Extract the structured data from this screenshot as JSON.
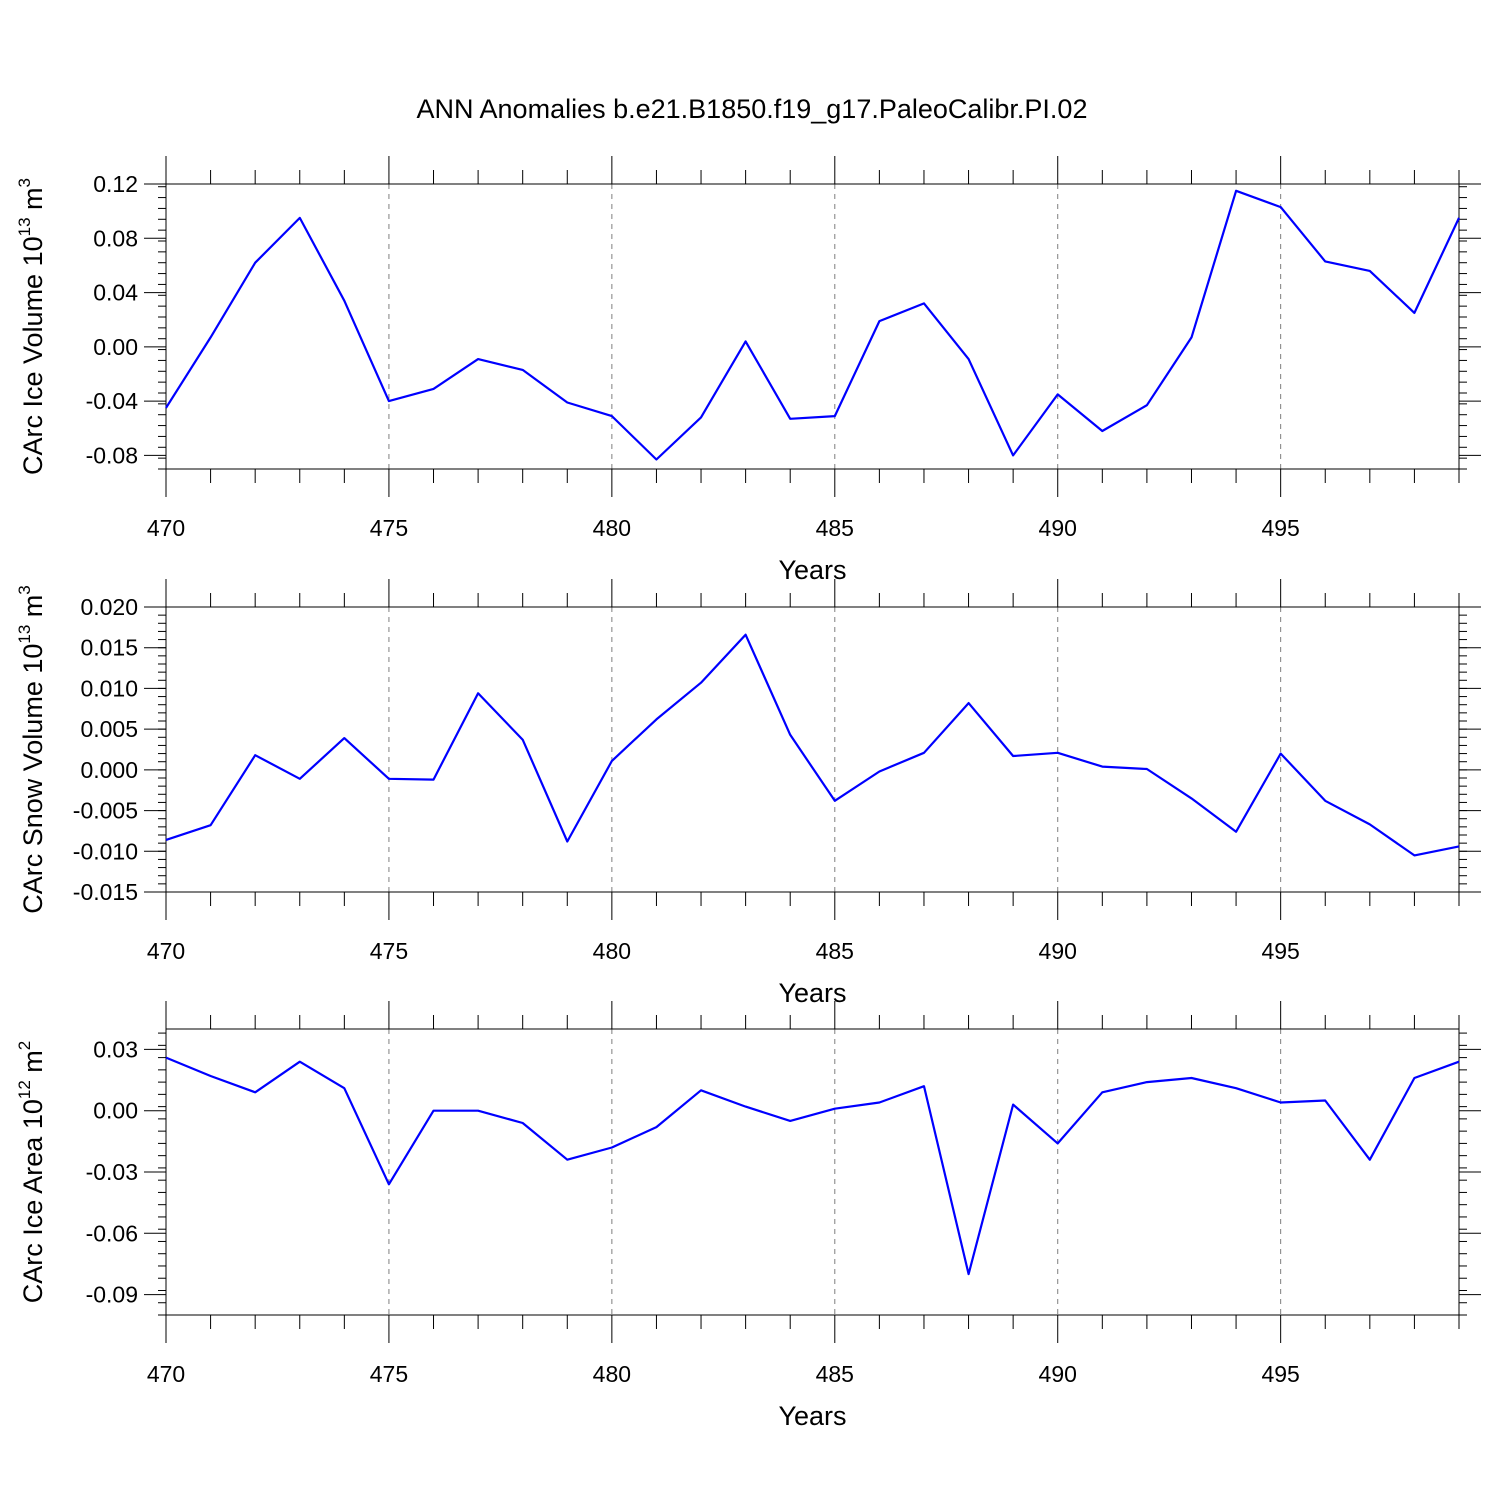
{
  "title": "ANN Anomalies b.e21.B1850.f19_g17.PaleoCalibr.PI.02",
  "colors": {
    "line": "#0000ff",
    "grid": "#7f7f7f"
  },
  "chart_data": [
    {
      "type": "line",
      "xlabel": "Years",
      "ylabel": {
        "base": "CArc Ice Volume 10",
        "exp": "13",
        "unit": " m",
        "unit_exp": "3"
      },
      "xlim": [
        470,
        499
      ],
      "ylim": [
        -0.09,
        0.12
      ],
      "x_ticks": [
        470,
        475,
        480,
        485,
        490,
        495
      ],
      "x_tick_labels": [
        "470",
        "475",
        "480",
        "485",
        "490",
        "495"
      ],
      "y_ticks": [
        -0.08,
        -0.04,
        0.0,
        0.04,
        0.08,
        0.12
      ],
      "y_tick_labels": [
        "-0.08",
        "-0.04",
        "0.00",
        "0.04",
        "0.08",
        "0.12"
      ],
      "grid": "vertical dashed at major x ticks",
      "x": [
        470,
        471,
        472,
        473,
        474,
        475,
        476,
        477,
        478,
        479,
        480,
        481,
        482,
        483,
        484,
        485,
        486,
        487,
        488,
        489,
        490,
        491,
        492,
        493,
        494,
        495,
        496,
        497,
        498,
        499
      ],
      "y": [
        -0.045,
        0.007,
        0.062,
        0.095,
        0.034,
        -0.04,
        -0.031,
        -0.009,
        -0.017,
        -0.041,
        -0.051,
        -0.083,
        -0.052,
        0.004,
        -0.053,
        -0.051,
        0.019,
        0.032,
        -0.009,
        -0.08,
        -0.035,
        -0.062,
        -0.043,
        0.007,
        0.115,
        0.103,
        0.063,
        0.056,
        0.025,
        0.095
      ]
    },
    {
      "type": "line",
      "xlabel": "Years",
      "ylabel": {
        "base": "CArc Snow Volume 10",
        "exp": "13",
        "unit": " m",
        "unit_exp": "3"
      },
      "xlim": [
        470,
        499
      ],
      "ylim": [
        -0.015,
        0.02
      ],
      "x_ticks": [
        470,
        475,
        480,
        485,
        490,
        495
      ],
      "x_tick_labels": [
        "470",
        "475",
        "480",
        "485",
        "490",
        "495"
      ],
      "y_ticks": [
        -0.015,
        -0.01,
        -0.005,
        0.0,
        0.005,
        0.01,
        0.015,
        0.02
      ],
      "y_tick_labels": [
        "-0.015",
        "-0.010",
        "-0.005",
        "0.000",
        "0.005",
        "0.010",
        "0.015",
        "0.020"
      ],
      "grid": "vertical dashed at major x ticks",
      "x": [
        470,
        471,
        472,
        473,
        474,
        475,
        476,
        477,
        478,
        479,
        480,
        481,
        482,
        483,
        484,
        485,
        486,
        487,
        488,
        489,
        490,
        491,
        492,
        493,
        494,
        495,
        496,
        497,
        498,
        499
      ],
      "y": [
        -0.0086,
        -0.0068,
        0.0018,
        -0.0011,
        0.0039,
        -0.0011,
        -0.0012,
        0.0094,
        0.0037,
        -0.0088,
        0.0011,
        0.0062,
        0.0107,
        0.0166,
        0.0043,
        -0.0038,
        -0.0002,
        0.0021,
        0.0082,
        0.0017,
        0.0021,
        0.0004,
        0.0001,
        -0.0035,
        -0.0076,
        0.002,
        -0.0038,
        -0.0067,
        -0.0105,
        -0.0094
      ]
    },
    {
      "type": "line",
      "xlabel": "Years",
      "ylabel": {
        "base": "CArc Ice Area 10",
        "exp": "12",
        "unit": " m",
        "unit_exp": "2"
      },
      "xlim": [
        470,
        499
      ],
      "ylim": [
        -0.1,
        0.04
      ],
      "x_ticks": [
        470,
        475,
        480,
        485,
        490,
        495
      ],
      "x_tick_labels": [
        "470",
        "475",
        "480",
        "485",
        "490",
        "495"
      ],
      "y_ticks": [
        -0.09,
        -0.06,
        -0.03,
        0.0,
        0.03
      ],
      "y_tick_labels": [
        "-0.09",
        "-0.06",
        "-0.03",
        "0.00",
        "0.03"
      ],
      "grid": "vertical dashed at major x ticks",
      "x": [
        470,
        471,
        472,
        473,
        474,
        475,
        476,
        477,
        478,
        479,
        480,
        481,
        482,
        483,
        484,
        485,
        486,
        487,
        488,
        489,
        490,
        491,
        492,
        493,
        494,
        495,
        496,
        497,
        498,
        499
      ],
      "y": [
        0.026,
        0.017,
        0.009,
        0.024,
        0.011,
        -0.036,
        0.0,
        0.0,
        -0.006,
        -0.024,
        -0.018,
        -0.008,
        0.01,
        0.002,
        -0.005,
        0.001,
        0.004,
        0.012,
        -0.08,
        0.003,
        -0.016,
        0.009,
        0.014,
        0.016,
        0.011,
        0.004,
        0.005,
        -0.024,
        0.016,
        0.024
      ]
    }
  ]
}
